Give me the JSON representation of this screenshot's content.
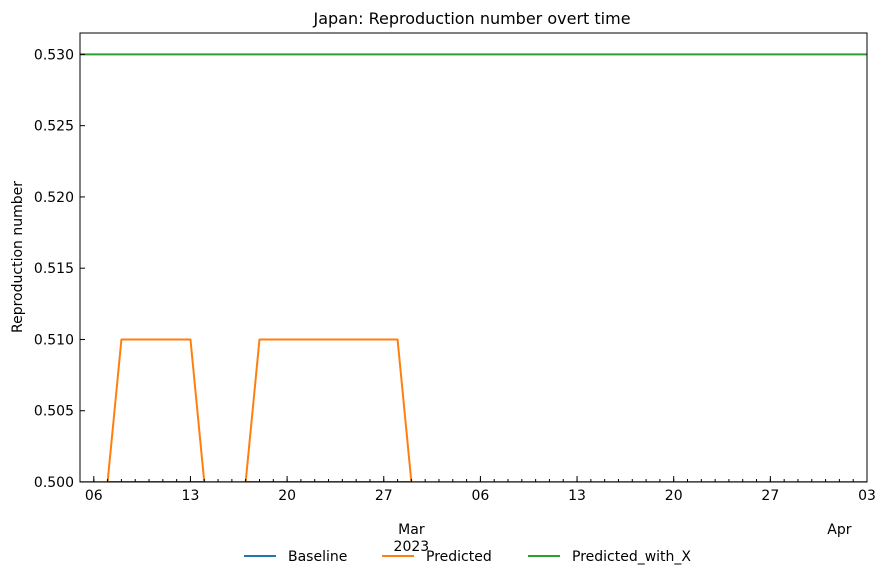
{
  "chart_data": {
    "type": "line",
    "title": "Japan: Reproduction number overt time",
    "xlabel": "",
    "ylabel": "Reproduction number",
    "x_type": "date",
    "xlim": [
      "2023-02-05",
      "2023-04-03"
    ],
    "ylim": [
      0.5,
      0.5315
    ],
    "y_ticks": [
      0.5,
      0.505,
      0.51,
      0.515,
      0.52,
      0.525,
      0.53
    ],
    "y_tick_labels": [
      "0.500",
      "0.505",
      "0.510",
      "0.515",
      "0.520",
      "0.525",
      "0.530"
    ],
    "x_ticks": [
      {
        "date": "2023-02-06",
        "label": "06"
      },
      {
        "date": "2023-02-13",
        "label": "13"
      },
      {
        "date": "2023-02-20",
        "label": "20"
      },
      {
        "date": "2023-02-27",
        "label": "27"
      },
      {
        "date": "2023-03-06",
        "label": "06"
      },
      {
        "date": "2023-03-13",
        "label": "13"
      },
      {
        "date": "2023-03-20",
        "label": "20"
      },
      {
        "date": "2023-03-27",
        "label": "27"
      },
      {
        "date": "2023-04-03",
        "label": "03"
      }
    ],
    "x_month_labels": [
      {
        "date": "2023-03-01",
        "label": "Mar",
        "year": "2023"
      },
      {
        "date": "2023-04-01",
        "label": "Apr",
        "year": ""
      }
    ],
    "grid": false,
    "legend_position": "bottom-center",
    "series": [
      {
        "name": "Baseline",
        "color": "#1f77b4",
        "points": [
          [
            "2023-02-05",
            0.5
          ],
          [
            "2023-04-03",
            0.5
          ]
        ]
      },
      {
        "name": "Predicted",
        "color": "#ff7f0e",
        "points": [
          [
            "2023-02-05",
            0.5
          ],
          [
            "2023-02-07",
            0.5
          ],
          [
            "2023-02-08",
            0.51
          ],
          [
            "2023-02-13",
            0.51
          ],
          [
            "2023-02-14",
            0.5
          ],
          [
            "2023-02-17",
            0.5
          ],
          [
            "2023-02-18",
            0.51
          ],
          [
            "2023-02-28",
            0.51
          ],
          [
            "2023-03-01",
            0.5
          ],
          [
            "2023-04-03",
            0.5
          ]
        ]
      },
      {
        "name": "Predicted_with_X",
        "color": "#2ca02c",
        "points": [
          [
            "2023-02-05",
            0.53
          ],
          [
            "2023-04-03",
            0.53
          ]
        ]
      }
    ]
  }
}
